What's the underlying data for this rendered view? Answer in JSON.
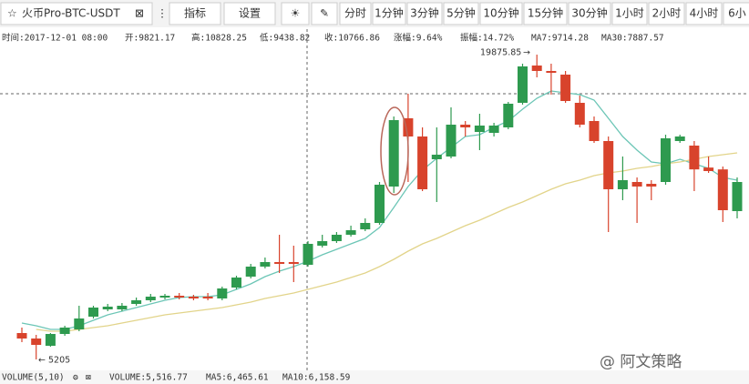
{
  "toolbar": {
    "symbol": "火币Pro-BTC-USDT",
    "buttons": [
      "指标",
      "设置"
    ],
    "intervals": [
      "分时",
      "1分钟",
      "3分钟",
      "5分钟",
      "10分钟",
      "15分钟",
      "30分钟",
      "1小时",
      "2小时",
      "4小时",
      "6小"
    ]
  },
  "info": [
    "时间:2017-12-01 08:00",
    "开:9821.17",
    "高:10828.25",
    "低:9438.82",
    "收:10766.86",
    "涨幅:9.64%",
    "振幅:14.72%",
    "MA7:9714.28",
    "MA30:7887.57"
  ],
  "footer": [
    "VOLUME(5,10)",
    "VOLUME:5,516.77",
    "MA5:6,465.61",
    "MA10:6,158.59"
  ],
  "watermark": "@ 阿文策略",
  "chart_data": {
    "type": "candlestick",
    "open": [
      6475,
      6212,
      5862,
      6431,
      6650,
      7264,
      7614,
      7614,
      7877,
      8052,
      8184,
      8271,
      8227,
      8227,
      8140,
      8665,
      9191,
      9673,
      9892,
      9892,
      9760,
      10680,
      10899,
      11206,
      11468,
      11775,
      13527,
      16812,
      15936,
      14841,
      14972,
      16505,
      16155,
      16111,
      16374,
      17557,
      19352,
      19090,
      18914,
      17557,
      16681,
      15717,
      13396,
      13746,
      13658,
      13746,
      15717,
      15498,
      14440,
      14352,
      12344
    ],
    "high": [
      6738,
      6388,
      6475,
      6826,
      7789,
      7789,
      7877,
      7921,
      8184,
      8359,
      8359,
      8402,
      8315,
      8402,
      8709,
      9235,
      9804,
      10111,
      11206,
      10680,
      10899,
      11206,
      11337,
      11644,
      11994,
      13746,
      16900,
      17995,
      16374,
      16374,
      17338,
      16681,
      17031,
      16593,
      17600,
      19440,
      19875.85,
      19440,
      19090,
      17907,
      16900,
      15936,
      14972,
      13965,
      13834,
      16022,
      16022,
      15717,
      14972,
      14491,
      13965
    ],
    "low": [
      6037,
      5205,
      5818,
      6344,
      6562,
      7176,
      7526,
      7526,
      7789,
      7964,
      8096,
      8096,
      8052,
      8052,
      8052,
      8578,
      9104,
      9585,
      9366,
      8928,
      9673,
      10592,
      10811,
      11118,
      11381,
      11688,
      13220,
      13746,
      13308,
      12782,
      14885,
      15936,
      15279,
      15936,
      16286,
      17469,
      18783,
      17951,
      17557,
      16374,
      15629,
      11337,
      12870,
      11775,
      12870,
      13615,
      15629,
      13308,
      14184,
      11819,
      11994
    ],
    "close": [
      6212,
      5906,
      6431,
      6738,
      7176,
      7702,
      7745,
      7789,
      8052,
      8227,
      8271,
      8184,
      8140,
      8140,
      8621,
      9147,
      9673,
      9892,
      9804,
      9804,
      10768,
      10899,
      11206,
      11425,
      11775,
      13615,
      16724,
      15936,
      13396,
      15060,
      16505,
      16374,
      16462,
      16462,
      17513,
      19309,
      19090,
      19002,
      17644,
      16505,
      15717,
      13396,
      13834,
      13527,
      13527,
      15848,
      15936,
      14352,
      14272,
      12388,
      13746
    ],
    "up_color": "#2e9a4f",
    "down_color": "#d8432c",
    "series": [
      {
        "color": "#6cc6b6",
        "values": [
          6957,
          6826,
          6650,
          6650,
          6826,
          7088,
          7351,
          7526,
          7702,
          7877,
          8052,
          8184,
          8227,
          8227,
          8315,
          8578,
          8840,
          9191,
          9454,
          9673,
          9935,
          10242,
          10505,
          10768,
          11030,
          11556,
          12520,
          13527,
          14315,
          14885,
          15410,
          15936,
          16022,
          16374,
          16681,
          17250,
          17776,
          18126,
          18038,
          17951,
          17688,
          16812,
          15936,
          15279,
          14710,
          14622,
          14841,
          14622,
          14403,
          13965,
          13834
        ]
      },
      {
        "color": "#e2d48a",
        "values": [
          null,
          6650,
          6562,
          6562,
          6650,
          6738,
          6826,
          6957,
          7088,
          7220,
          7351,
          7439,
          7526,
          7614,
          7702,
          7833,
          7964,
          8140,
          8271,
          8402,
          8578,
          8753,
          8928,
          9147,
          9366,
          9673,
          10023,
          10417,
          10768,
          11030,
          11337,
          11644,
          11906,
          12213,
          12520,
          12782,
          13089,
          13396,
          13658,
          13834,
          14053,
          14184,
          14272,
          14403,
          14491,
          14622,
          14710,
          14841,
          14972,
          15060,
          15148
        ]
      }
    ],
    "ylim": [
      4767,
      20754
    ],
    "annotations": [
      "19875.85",
      "5205"
    ]
  }
}
